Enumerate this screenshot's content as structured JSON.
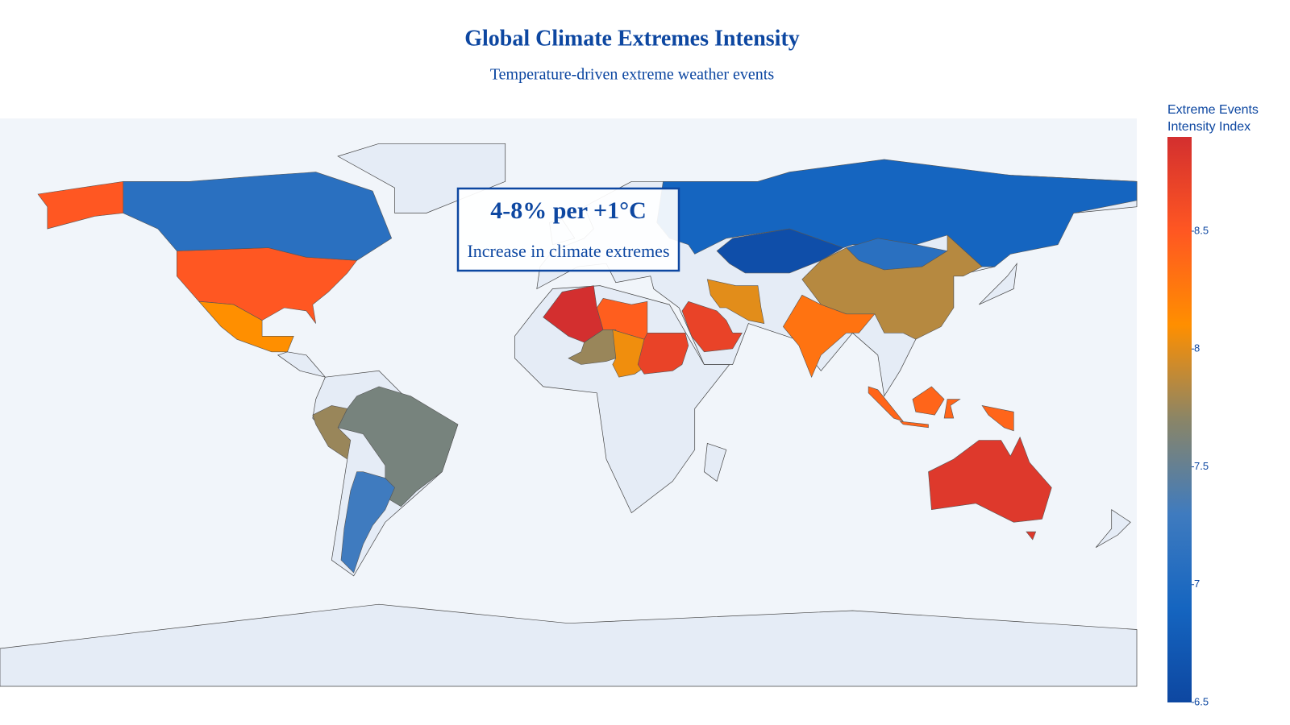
{
  "chart_data": {
    "type": "choropleth",
    "title": "Global Climate Extremes Intensity",
    "subtitle": "Temperature-driven extreme weather events",
    "annotation": {
      "headline": "4-8% per +1°C",
      "text": "Increase in climate extremes"
    },
    "values": [
      8.5,
      7.1,
      8.1,
      7.6,
      7.75,
      7.3,
      6.9,
      6.6,
      7.1,
      7.85,
      8.3,
      8.0,
      8.7,
      8.9,
      8.45,
      7.75,
      8.05,
      8.7,
      8.4,
      8.8
    ],
    "colorbar_title": "Extreme Events Intensity Index",
    "clim": [
      6.5,
      8.9
    ],
    "cticks": [
      6.5,
      7,
      7.5,
      8,
      8.5
    ],
    "colorscale": [
      "#0d47a1",
      "#1565c0",
      "#3f7bbf",
      "#8a8567",
      "#ff8f00",
      "#ff5722",
      "#d32f2f"
    ],
    "land_color": "#e5ecf6",
    "ocean_color": "#f1f5fa"
  }
}
